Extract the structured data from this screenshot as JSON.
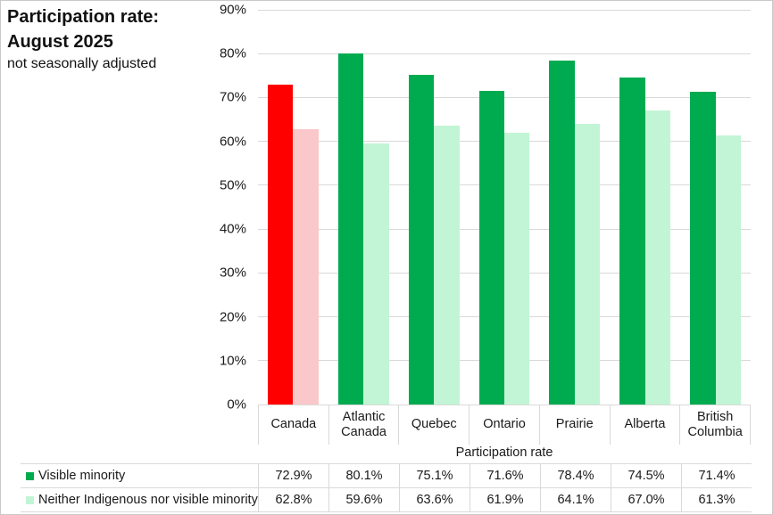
{
  "title": {
    "line1": "Participation rate:",
    "line2": "August 2025",
    "subtitle": "not seasonally adjusted"
  },
  "colors": {
    "series1": "#00AB50",
    "series1_canada": "#FF0000",
    "series2": "#C2F5D5",
    "series2_canada": "#FAC8CB",
    "gridline": "#D9D9D9"
  },
  "chart_data": {
    "type": "bar",
    "categories": [
      "Canada",
      "Atlantic Canada",
      "Quebec",
      "Ontario",
      "Prairie",
      "Alberta",
      "British Columbia"
    ],
    "series": [
      {
        "name": "Visible minority",
        "values": [
          72.9,
          80.1,
          75.1,
          71.6,
          78.4,
          74.5,
          71.4
        ]
      },
      {
        "name": "Neither Indigenous nor visible minority",
        "values": [
          62.8,
          59.6,
          63.6,
          61.9,
          64.1,
          67.0,
          61.3
        ]
      }
    ],
    "table_values": [
      [
        "72.9%",
        "80.1%",
        "75.1%",
        "71.6%",
        "78.4%",
        "74.5%",
        "71.4%"
      ],
      [
        "62.8%",
        "59.6%",
        "63.6%",
        "61.9%",
        "64.1%",
        "67.0%",
        "61.3%"
      ]
    ],
    "xlabel": "Participation rate",
    "ylabel": "",
    "ylim": [
      0,
      90
    ],
    "ytick_labels": [
      "0%",
      "10%",
      "20%",
      "30%",
      "40%",
      "50%",
      "60%",
      "70%",
      "80%",
      "90%"
    ],
    "grid": true,
    "legend_position": "bottom-table",
    "highlight_category": "Canada"
  }
}
